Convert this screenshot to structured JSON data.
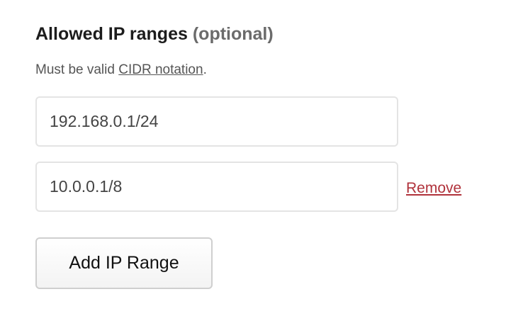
{
  "field": {
    "label": "Allowed IP ranges",
    "optional": "(optional)",
    "hint_prefix": "Must be valid ",
    "hint_link": "CIDR notation",
    "hint_suffix": "."
  },
  "ranges": [
    {
      "value": "192.168.0.1/24"
    },
    {
      "value": "10.0.0.1/8",
      "remove_label": "Remove"
    }
  ],
  "add_button": "Add IP Range",
  "colors": {
    "remove": "#b0323b"
  }
}
